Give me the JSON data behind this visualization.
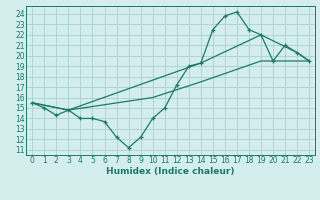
{
  "title": "",
  "xlabel": "Humidex (Indice chaleur)",
  "bg_color": "#d4eeee",
  "grid_color": "#aed4d4",
  "line_color": "#1a7a6a",
  "xlim": [
    -0.5,
    23.5
  ],
  "ylim": [
    10.5,
    24.8
  ],
  "xticks": [
    0,
    1,
    2,
    3,
    4,
    5,
    6,
    7,
    8,
    9,
    10,
    11,
    12,
    13,
    14,
    15,
    16,
    17,
    18,
    19,
    20,
    21,
    22,
    23
  ],
  "yticks": [
    11,
    12,
    13,
    14,
    15,
    16,
    17,
    18,
    19,
    20,
    21,
    22,
    23,
    24
  ],
  "line1_x": [
    0,
    1,
    2,
    3,
    4,
    5,
    6,
    7,
    8,
    9,
    10,
    11,
    12,
    13,
    14,
    15,
    16,
    17,
    18,
    19,
    20,
    21,
    22,
    23
  ],
  "line1_y": [
    15.5,
    15.0,
    14.3,
    14.8,
    14.0,
    14.0,
    13.7,
    12.2,
    11.2,
    12.2,
    14.0,
    15.0,
    17.2,
    19.0,
    19.3,
    22.5,
    23.8,
    24.2,
    22.5,
    22.0,
    19.5,
    21.0,
    20.3,
    19.5
  ],
  "line2_x": [
    0,
    3,
    14,
    19,
    22,
    23
  ],
  "line2_y": [
    15.5,
    14.8,
    19.3,
    22.0,
    20.3,
    19.5
  ],
  "line3_x": [
    0,
    3,
    10,
    14,
    19,
    23
  ],
  "line3_y": [
    15.5,
    14.8,
    16.0,
    17.5,
    19.5,
    19.5
  ]
}
